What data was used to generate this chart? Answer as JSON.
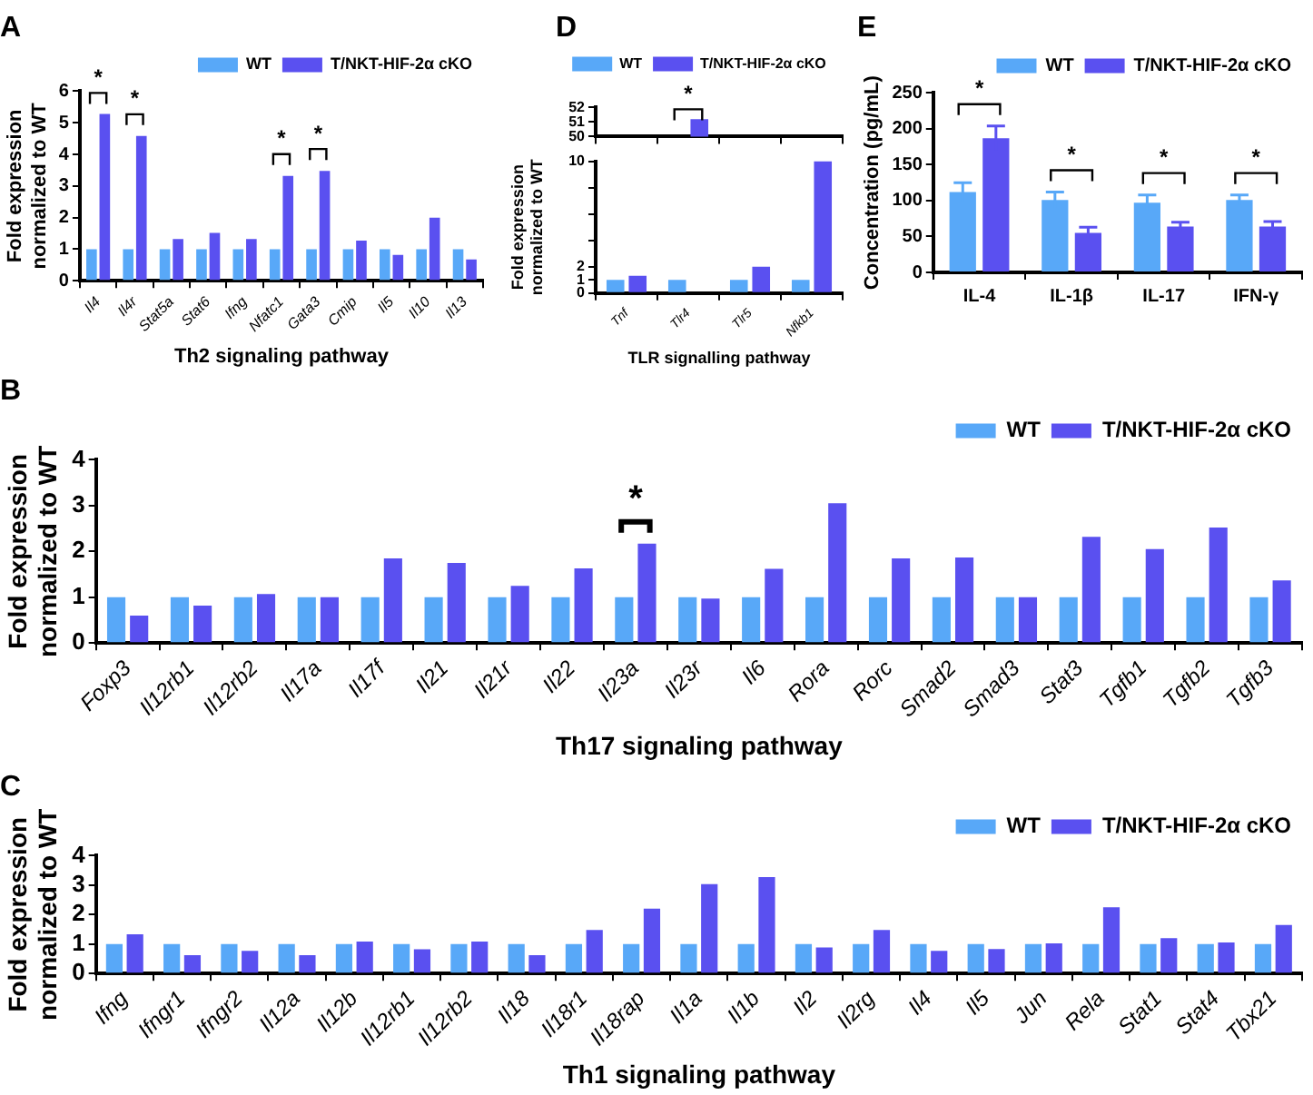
{
  "chart_data": [
    {
      "type": "bar",
      "title": "A",
      "xlabel": "Th2 signaling pathway",
      "ylabel": "Fold expression\nnormalized to WT",
      "categories": [
        "Il4",
        "Il4r",
        "Stat5a",
        "Stat6",
        "Ifng",
        "Nfatc1",
        "Gata3",
        "Cmip",
        "Il5",
        "Il10",
        "Il13"
      ],
      "series": [
        {
          "name": "WT",
          "color": "#58a8f8",
          "values": [
            1,
            1,
            1,
            1,
            1,
            1,
            1,
            1,
            1,
            1,
            1
          ]
        },
        {
          "name": "T/NKT-HIF-2α cKO",
          "color": "#5a50f0",
          "values": [
            5.28,
            4.58,
            1.32,
            1.52,
            1.32,
            3.32,
            3.48,
            1.27,
            0.82,
            2.0,
            0.68
          ]
        }
      ],
      "ylim": [
        0,
        6
      ],
      "yticks": [
        0,
        1,
        2,
        3,
        4,
        5,
        6
      ],
      "legend": "top right",
      "annotations": [
        {
          "text": "*",
          "x": "Il4",
          "y": 5.28
        },
        {
          "text": "*",
          "x": "Il4r",
          "y": 4.58
        },
        {
          "text": "*",
          "x": "Nfatc1",
          "y": 3.32
        },
        {
          "text": "*",
          "x": "Gata3",
          "y": 3.48
        }
      ]
    },
    {
      "type": "bar",
      "title": "D",
      "categories": [
        "Tnf",
        "Tlr4",
        "Tlr5",
        "Nfkb1"
      ],
      "series": [
        {
          "name": "WT",
          "color": "#58a8f8",
          "values": [
            null,
            null,
            null,
            null
          ]
        },
        {
          "name": "T/NKT-HIF-2α cKO",
          "color": "#5a50f0",
          "values": [
            null,
            51.2,
            null,
            null
          ]
        }
      ],
      "ylim": [
        50,
        52
      ],
      "yticks": [
        50,
        51,
        52
      ],
      "legend": "top",
      "tick_labels": "y",
      "annotations": [
        {
          "text": "*",
          "x": "Tlr4",
          "y": 51.2
        }
      ]
    },
    {
      "type": "bar",
      "xlabel": "TLR signalling pathway",
      "ylabel": "Fold expression\nnormalized to WT",
      "categories": [
        "Tnf",
        "Tlr4",
        "Tlr5",
        "Nfkb1"
      ],
      "series": [
        {
          "color": "#58a8f8",
          "values": [
            1,
            1,
            1,
            1
          ]
        },
        {
          "color": "#5a50f0",
          "values": [
            1.3,
            null,
            2,
            10
          ]
        }
      ],
      "ylim": [
        0,
        10
      ],
      "yticks": [
        0,
        1,
        2,
        {
          "value": 4,
          "label": null
        },
        {
          "value": 6,
          "label": null
        },
        {
          "value": 8,
          "label": null
        },
        10
      ]
    },
    {
      "type": "bar",
      "title": "E",
      "ylabel": "Concentration (pg/mL)",
      "categories": [
        "IL-4",
        "IL-1β",
        "IL-17",
        "IFN-γ"
      ],
      "series": [
        {
          "name": "WT",
          "color": "#58a8f8",
          "values": [
            112,
            101,
            97,
            101
          ],
          "errors": [
            13,
            11,
            11,
            7
          ]
        },
        {
          "name": "T/NKT-HIF-2α cKO",
          "color": "#5a50f0",
          "values": [
            187,
            55,
            64,
            64
          ],
          "errors": [
            17,
            8,
            6,
            7
          ]
        }
      ],
      "ylim": [
        0,
        250
      ],
      "yticks": [
        0,
        50,
        100,
        150,
        200,
        250
      ],
      "legend": "top right",
      "annotations": [
        {
          "text": "*",
          "x": "IL-4",
          "y": 187
        },
        {
          "text": "*",
          "x": "IL-1β",
          "y": 101
        },
        {
          "text": "*",
          "x": "IL-17",
          "y": 97
        },
        {
          "text": "*",
          "x": "IFN-γ",
          "y": 101
        }
      ]
    },
    {
      "type": "bar",
      "title": "B",
      "xlabel": "Th17 signaling pathway",
      "ylabel": "Fold expression\nnormalized to WT",
      "categories": [
        "Foxp3",
        "Il12rb1",
        "Il12rb2",
        "Il17a",
        "Il17f",
        "Il21",
        "Il21r",
        "Il22",
        "Il23a",
        "Il23r",
        "Il6",
        "Rora",
        "Rorc",
        "Smad2",
        "Smad3",
        "Stat3",
        "Tgfb1",
        "Tgfb2",
        "Tgfb3"
      ],
      "series": [
        {
          "name": "WT",
          "color": "#58a8f8",
          "values": [
            1,
            1,
            1,
            1,
            1,
            1,
            1,
            1,
            1,
            1,
            1,
            1,
            1,
            1,
            1,
            1,
            1,
            1,
            1
          ]
        },
        {
          "name": "T/NKT-HIF-2α cKO",
          "color": "#5a50f0",
          "values": [
            0.6,
            0.82,
            1.07,
            1.0,
            1.85,
            1.75,
            1.25,
            1.63,
            2.17,
            0.97,
            1.62,
            3.05,
            1.85,
            1.87,
            1.0,
            2.32,
            2.05,
            2.52,
            1.37
          ]
        }
      ],
      "ylim": [
        0,
        4
      ],
      "yticks": [
        0,
        1,
        2,
        3,
        4
      ],
      "legend": "top right",
      "annotations": [
        {
          "text": "*",
          "x": "Il23a",
          "y": 2.17
        }
      ]
    },
    {
      "type": "bar",
      "title": "C",
      "xlabel": "Th1 signaling pathway",
      "ylabel": "Fold expression\nnormalized to WT",
      "categories": [
        "Ifng",
        "Ifngr1",
        "Ifngr2",
        "Il12a",
        "Il12b",
        "Il12rb1",
        "Il12rb2",
        "Il18",
        "Il18r1",
        "Il18rap",
        "Il1a",
        "Il1b",
        "Il2",
        "Il2rg",
        "Il4",
        "Il5",
        "Jun",
        "Rela",
        "Stat1",
        "Stat4",
        "Tbx21"
      ],
      "series": [
        {
          "name": "WT",
          "color": "#58a8f8",
          "values": [
            1,
            1,
            1,
            1,
            1,
            1,
            1,
            1,
            1,
            1,
            1,
            1,
            1,
            1,
            1,
            1,
            1,
            1,
            1,
            1,
            1
          ]
        },
        {
          "name": "T/NKT-HIF-2α cKO",
          "color": "#5a50f0",
          "values": [
            1.33,
            0.62,
            0.77,
            0.62,
            1.08,
            0.82,
            1.08,
            0.62,
            1.48,
            2.2,
            3.03,
            3.27,
            0.88,
            1.48,
            0.77,
            0.83,
            1.02,
            2.25,
            1.2,
            1.05,
            1.65
          ]
        }
      ],
      "ylim": [
        0,
        4
      ],
      "yticks": [
        0,
        1,
        2,
        3,
        4
      ],
      "legend": "top right"
    }
  ]
}
